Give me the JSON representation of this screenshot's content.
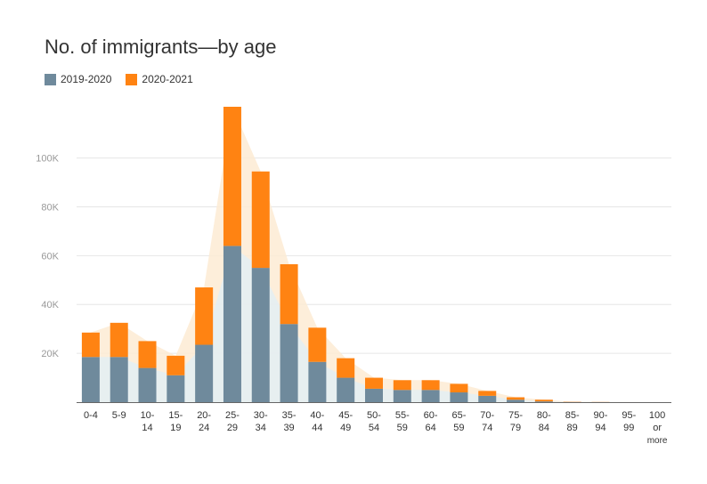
{
  "chart_data": {
    "type": "bar",
    "stacked": true,
    "title": "No. of immigrants—by age",
    "categories": [
      "0-4",
      "5-9",
      "10-14",
      "15-19",
      "20-24",
      "25-29",
      "30-34",
      "35-39",
      "40-44",
      "45-49",
      "50-54",
      "55-59",
      "60-64",
      "65-59",
      "70-74",
      "75-79",
      "80-84",
      "85-89",
      "90-94",
      "95-99",
      "100 or more"
    ],
    "category_labels": [
      [
        "0-4"
      ],
      [
        "5-9"
      ],
      [
        "10-",
        "14"
      ],
      [
        "15-",
        "19"
      ],
      [
        "20-",
        "24"
      ],
      [
        "25-",
        "29"
      ],
      [
        "30-",
        "34"
      ],
      [
        "35-",
        "39"
      ],
      [
        "40-",
        "44"
      ],
      [
        "45-",
        "49"
      ],
      [
        "50-",
        "54"
      ],
      [
        "55-",
        "59"
      ],
      [
        "60-",
        "64"
      ],
      [
        "65-",
        "59"
      ],
      [
        "70-",
        "74"
      ],
      [
        "75-",
        "79"
      ],
      [
        "80-",
        "84"
      ],
      [
        "85-",
        "89"
      ],
      [
        "90-",
        "94"
      ],
      [
        "95-",
        "99"
      ],
      [
        "100",
        "or",
        "more"
      ]
    ],
    "series": [
      {
        "name": "2019-2020",
        "color": "#6f8a9c",
        "values": [
          18500,
          18500,
          14000,
          11000,
          23500,
          64000,
          55000,
          32000,
          16500,
          10000,
          5500,
          5000,
          5000,
          4000,
          2600,
          1000,
          300,
          50,
          20,
          5,
          0
        ]
      },
      {
        "name": "2020-2021",
        "color": "#ff8312",
        "values": [
          10000,
          14000,
          11000,
          8000,
          23500,
          57000,
          39500,
          24500,
          14000,
          8000,
          4500,
          4000,
          4000,
          3500,
          2000,
          1000,
          700,
          100,
          50,
          10,
          5
        ]
      }
    ],
    "area_color": "#fdebd3",
    "yticks": [
      20000,
      40000,
      60000,
      80000,
      100000
    ],
    "ytick_labels": [
      "20K",
      "40K",
      "60K",
      "80K",
      "100K"
    ],
    "ylim": [
      0,
      121000
    ],
    "grid": true,
    "legend_position": "top-left"
  }
}
